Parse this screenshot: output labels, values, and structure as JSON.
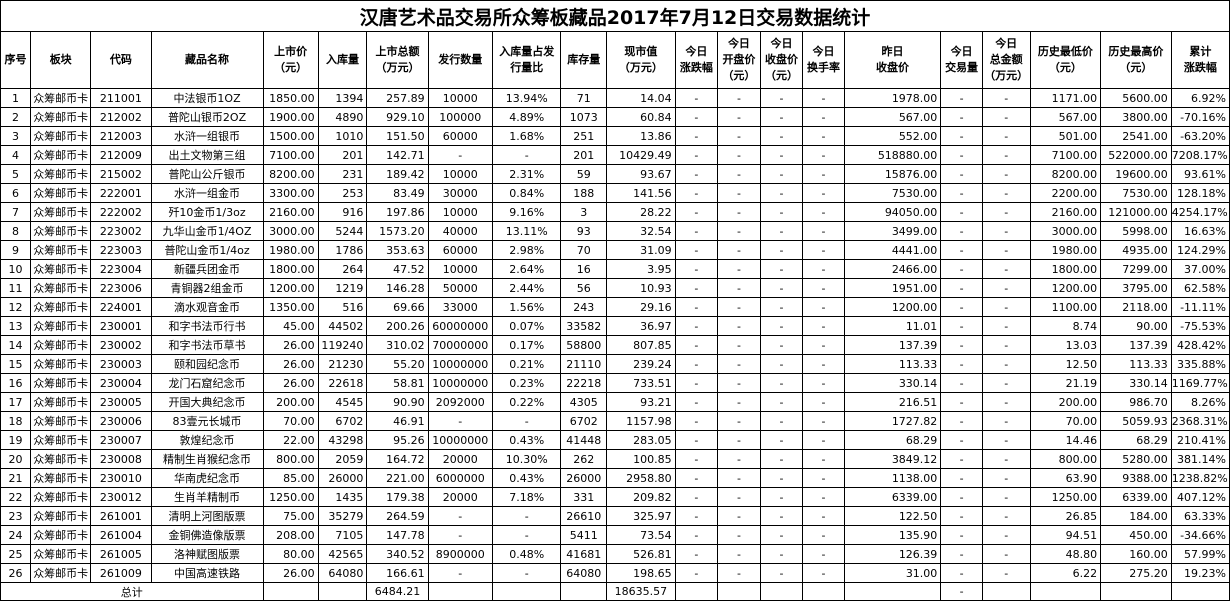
{
  "title": "汉唐艺术品交易所众筹板藏品2017年7月12日交易数据统计",
  "headers": [
    "序号",
    "板块",
    "代码",
    "藏品名称",
    "上市价\n（元）",
    "入库量",
    "上市总额\n（万元）",
    "发行数量",
    "入库量占发\n行量比",
    "库存量",
    "现市值\n（万元）",
    "今日\n涨跌幅",
    "今日\n开盘价\n（元）",
    "今日\n收盘价\n（元）",
    "今日\n换手率",
    "昨日\n收盘价",
    "今日\n交易量",
    "今日\n总金额\n（万元）",
    "历史最低价\n（元）",
    "历史最高价\n（元）",
    "累计\n涨跌幅"
  ],
  "rows": [
    [
      "1",
      "众筹邮币卡",
      "211001",
      "中法银币1OZ",
      "1850.00",
      "1394",
      "257.89",
      "10000",
      "13.94%",
      "71",
      "14.04",
      "-",
      "-",
      "-",
      "-",
      "1978.00",
      "-",
      "-",
      "1171.00",
      "5600.00",
      "6.92%"
    ],
    [
      "2",
      "众筹邮币卡",
      "212002",
      "普陀山银币2OZ",
      "1900.00",
      "4890",
      "929.10",
      "100000",
      "4.89%",
      "1073",
      "60.84",
      "-",
      "-",
      "-",
      "-",
      "567.00",
      "-",
      "-",
      "567.00",
      "3800.00",
      "-70.16%"
    ],
    [
      "3",
      "众筹邮币卡",
      "212003",
      "水浒一组银币",
      "1500.00",
      "1010",
      "151.50",
      "60000",
      "1.68%",
      "251",
      "13.86",
      "-",
      "-",
      "-",
      "-",
      "552.00",
      "-",
      "-",
      "501.00",
      "2541.00",
      "-63.20%"
    ],
    [
      "4",
      "众筹邮币卡",
      "212009",
      "出土文物第三组",
      "7100.00",
      "201",
      "142.71",
      "-",
      "-",
      "201",
      "10429.49",
      "-",
      "-",
      "-",
      "-",
      "518880.00",
      "-",
      "-",
      "7100.00",
      "522000.00",
      "7208.17%"
    ],
    [
      "5",
      "众筹邮币卡",
      "215002",
      "普陀山公斤银币",
      "8200.00",
      "231",
      "189.42",
      "10000",
      "2.31%",
      "59",
      "93.67",
      "-",
      "-",
      "-",
      "-",
      "15876.00",
      "-",
      "-",
      "8200.00",
      "19600.00",
      "93.61%"
    ],
    [
      "6",
      "众筹邮币卡",
      "222001",
      "水浒一组金币",
      "3300.00",
      "253",
      "83.49",
      "30000",
      "0.84%",
      "188",
      "141.56",
      "-",
      "-",
      "-",
      "-",
      "7530.00",
      "-",
      "-",
      "2200.00",
      "7530.00",
      "128.18%"
    ],
    [
      "7",
      "众筹邮币卡",
      "222002",
      "歼10金币1/3oz",
      "2160.00",
      "916",
      "197.86",
      "10000",
      "9.16%",
      "3",
      "28.22",
      "-",
      "-",
      "-",
      "-",
      "94050.00",
      "-",
      "-",
      "2160.00",
      "121000.00",
      "4254.17%"
    ],
    [
      "8",
      "众筹邮币卡",
      "223002",
      "九华山金币1/4OZ",
      "3000.00",
      "5244",
      "1573.20",
      "40000",
      "13.11%",
      "93",
      "32.54",
      "-",
      "-",
      "-",
      "-",
      "3499.00",
      "-",
      "-",
      "3000.00",
      "5998.00",
      "16.63%"
    ],
    [
      "9",
      "众筹邮币卡",
      "223003",
      "普陀山金币1/4oz",
      "1980.00",
      "1786",
      "353.63",
      "60000",
      "2.98%",
      "70",
      "31.09",
      "-",
      "-",
      "-",
      "-",
      "4441.00",
      "-",
      "-",
      "1980.00",
      "4935.00",
      "124.29%"
    ],
    [
      "10",
      "众筹邮币卡",
      "223004",
      "新疆兵团金币",
      "1800.00",
      "264",
      "47.52",
      "10000",
      "2.64%",
      "16",
      "3.95",
      "-",
      "-",
      "-",
      "-",
      "2466.00",
      "-",
      "-",
      "1800.00",
      "7299.00",
      "37.00%"
    ],
    [
      "11",
      "众筹邮币卡",
      "223006",
      "青铜器2组金币",
      "1200.00",
      "1219",
      "146.28",
      "50000",
      "2.44%",
      "56",
      "10.93",
      "-",
      "-",
      "-",
      "-",
      "1951.00",
      "-",
      "-",
      "1200.00",
      "3795.00",
      "62.58%"
    ],
    [
      "12",
      "众筹邮币卡",
      "224001",
      "滴水观音金币",
      "1350.00",
      "516",
      "69.66",
      "33000",
      "1.56%",
      "243",
      "29.16",
      "-",
      "-",
      "-",
      "-",
      "1200.00",
      "-",
      "-",
      "1100.00",
      "2118.00",
      "-11.11%"
    ],
    [
      "13",
      "众筹邮币卡",
      "230001",
      "和字书法币行书",
      "45.00",
      "44502",
      "200.26",
      "60000000",
      "0.07%",
      "33582",
      "36.97",
      "-",
      "-",
      "-",
      "-",
      "11.01",
      "-",
      "-",
      "8.74",
      "90.00",
      "-75.53%"
    ],
    [
      "14",
      "众筹邮币卡",
      "230002",
      "和字书法币草书",
      "26.00",
      "119240",
      "310.02",
      "70000000",
      "0.17%",
      "58800",
      "807.85",
      "-",
      "-",
      "-",
      "-",
      "137.39",
      "-",
      "-",
      "13.03",
      "137.39",
      "428.42%"
    ],
    [
      "15",
      "众筹邮币卡",
      "230003",
      "颐和园纪念币",
      "26.00",
      "21230",
      "55.20",
      "10000000",
      "0.21%",
      "21110",
      "239.24",
      "-",
      "-",
      "-",
      "-",
      "113.33",
      "-",
      "-",
      "12.50",
      "113.33",
      "335.88%"
    ],
    [
      "16",
      "众筹邮币卡",
      "230004",
      "龙门石窟纪念币",
      "26.00",
      "22618",
      "58.81",
      "10000000",
      "0.23%",
      "22218",
      "733.51",
      "-",
      "-",
      "-",
      "-",
      "330.14",
      "-",
      "-",
      "21.19",
      "330.14",
      "1169.77%"
    ],
    [
      "17",
      "众筹邮币卡",
      "230005",
      "开国大典纪念币",
      "200.00",
      "4545",
      "90.90",
      "2092000",
      "0.22%",
      "4305",
      "93.21",
      "-",
      "-",
      "-",
      "-",
      "216.51",
      "-",
      "-",
      "200.00",
      "986.70",
      "8.26%"
    ],
    [
      "18",
      "众筹邮币卡",
      "230006",
      "83壹元长城币",
      "70.00",
      "6702",
      "46.91",
      "-",
      "-",
      "6702",
      "1157.98",
      "-",
      "-",
      "-",
      "-",
      "1727.82",
      "-",
      "-",
      "70.00",
      "5059.93",
      "2368.31%"
    ],
    [
      "19",
      "众筹邮币卡",
      "230007",
      "敦煌纪念币",
      "22.00",
      "43298",
      "95.26",
      "10000000",
      "0.43%",
      "41448",
      "283.05",
      "-",
      "-",
      "-",
      "-",
      "68.29",
      "-",
      "-",
      "14.46",
      "68.29",
      "210.41%"
    ],
    [
      "20",
      "众筹邮币卡",
      "230008",
      "精制生肖猴纪念币",
      "800.00",
      "2059",
      "164.72",
      "20000",
      "10.30%",
      "262",
      "100.85",
      "-",
      "-",
      "-",
      "-",
      "3849.12",
      "-",
      "-",
      "800.00",
      "5280.00",
      "381.14%"
    ],
    [
      "21",
      "众筹邮币卡",
      "230010",
      "华南虎纪念币",
      "85.00",
      "26000",
      "221.00",
      "6000000",
      "0.43%",
      "26000",
      "2958.80",
      "-",
      "-",
      "-",
      "-",
      "1138.00",
      "-",
      "-",
      "63.90",
      "9388.00",
      "1238.82%"
    ],
    [
      "22",
      "众筹邮币卡",
      "230012",
      "生肖羊精制币",
      "1250.00",
      "1435",
      "179.38",
      "20000",
      "7.18%",
      "331",
      "209.82",
      "-",
      "-",
      "-",
      "-",
      "6339.00",
      "-",
      "-",
      "1250.00",
      "6339.00",
      "407.12%"
    ],
    [
      "23",
      "众筹邮币卡",
      "261001",
      "清明上河图版票",
      "75.00",
      "35279",
      "264.59",
      "-",
      "-",
      "26610",
      "325.97",
      "-",
      "-",
      "-",
      "-",
      "122.50",
      "-",
      "-",
      "26.85",
      "184.00",
      "63.33%"
    ],
    [
      "24",
      "众筹邮币卡",
      "261004",
      "金铜佛造像版票",
      "208.00",
      "7105",
      "147.78",
      "-",
      "-",
      "5411",
      "73.54",
      "-",
      "-",
      "-",
      "-",
      "135.90",
      "-",
      "-",
      "94.51",
      "450.00",
      "-34.66%"
    ],
    [
      "25",
      "众筹邮币卡",
      "261005",
      "洛神赋图版票",
      "80.00",
      "42565",
      "340.52",
      "8900000",
      "0.48%",
      "41681",
      "526.81",
      "-",
      "-",
      "-",
      "-",
      "126.39",
      "-",
      "-",
      "48.80",
      "160.00",
      "57.99%"
    ],
    [
      "26",
      "众筹邮币卡",
      "261009",
      "中国高速铁路",
      "26.00",
      "64080",
      "166.61",
      "-",
      "-",
      "64080",
      "198.65",
      "-",
      "-",
      "-",
      "-",
      "31.00",
      "-",
      "-",
      "6.22",
      "275.20",
      "19.23%"
    ]
  ],
  "total": {
    "label": "总计",
    "listing_total": "6484.21",
    "market_value_total": "18635.57",
    "dash": "-"
  }
}
